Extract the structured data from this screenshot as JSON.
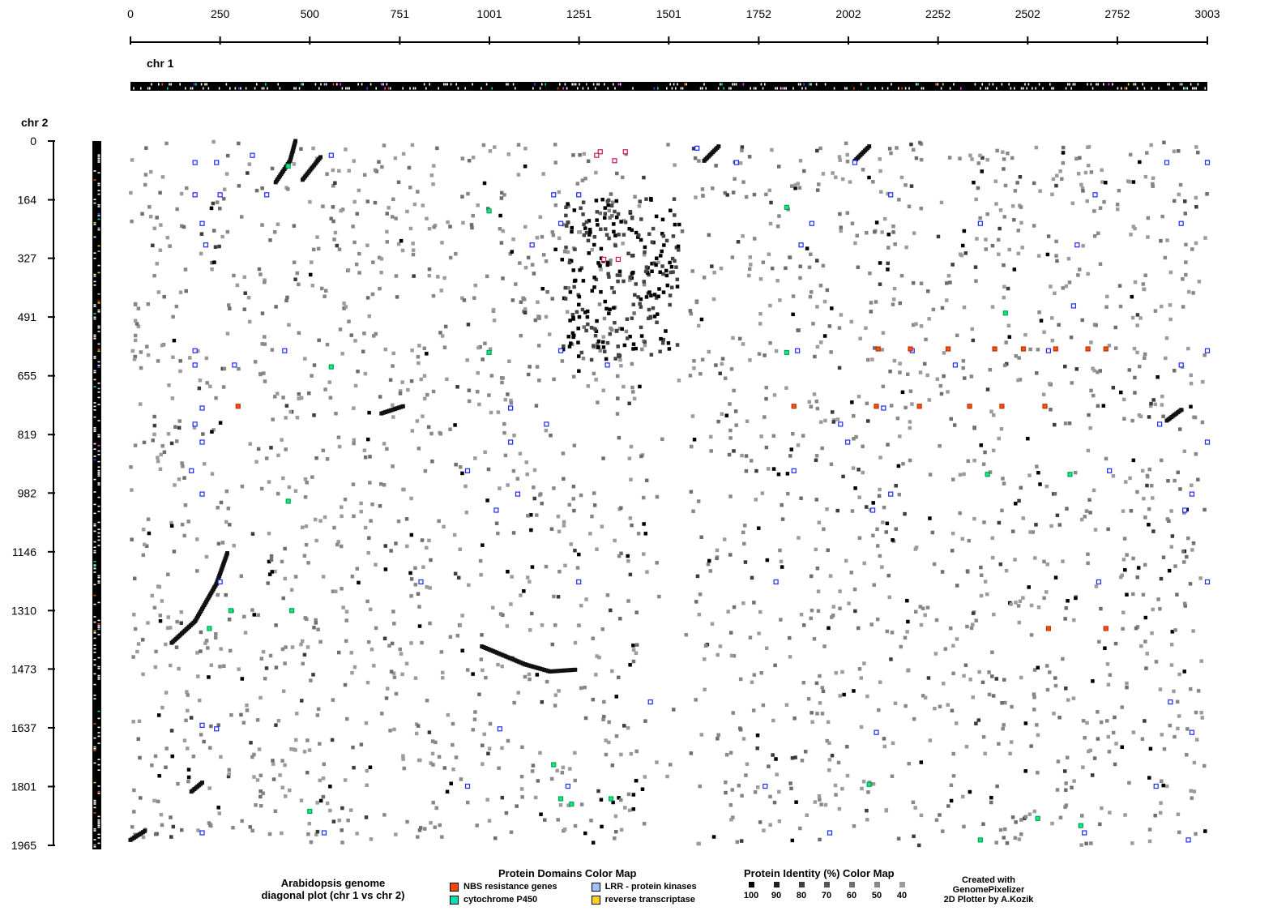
{
  "chart_data": {
    "type": "scatter",
    "title": "Arabidopsis genome diagonal plot (chr 1 vs chr 2)",
    "x_chromosome_label": "chr 1",
    "y_chromosome_label": "chr 2",
    "x_ticks": [
      0,
      250,
      500,
      751,
      1001,
      1251,
      1501,
      1752,
      2002,
      2252,
      2502,
      2752,
      3003
    ],
    "y_ticks": [
      0,
      164,
      327,
      491,
      655,
      819,
      982,
      1146,
      1310,
      1473,
      1637,
      1801,
      1965
    ],
    "xlim": [
      0,
      3003
    ],
    "ylim": [
      0,
      1965
    ],
    "y_inverted": true,
    "diagonal_segments": [
      {
        "identity": 100,
        "points": [
          [
            460,
            0
          ],
          [
            445,
            55
          ],
          [
            405,
            115
          ]
        ]
      },
      {
        "identity": 100,
        "points": [
          [
            530,
            45
          ],
          [
            480,
            108
          ]
        ]
      },
      {
        "identity": 100,
        "points": [
          [
            270,
            1150
          ],
          [
            240,
            1235
          ],
          [
            180,
            1340
          ],
          [
            115,
            1400
          ]
        ]
      },
      {
        "identity": 100,
        "points": [
          [
            980,
            1410
          ],
          [
            1100,
            1460
          ],
          [
            1170,
            1480
          ],
          [
            1240,
            1475
          ]
        ]
      },
      {
        "identity": 100,
        "points": [
          [
            700,
            760
          ],
          [
            760,
            740
          ]
        ]
      },
      {
        "identity": 100,
        "points": [
          [
            1640,
            15
          ],
          [
            1600,
            55
          ]
        ]
      },
      {
        "identity": 100,
        "points": [
          [
            2930,
            750
          ],
          [
            2890,
            780
          ]
        ]
      },
      {
        "identity": 100,
        "points": [
          [
            2060,
            15
          ],
          [
            2020,
            55
          ]
        ]
      },
      {
        "identity": 100,
        "points": [
          [
            40,
            1925
          ],
          [
            0,
            1950
          ]
        ]
      },
      {
        "identity": 100,
        "points": [
          [
            200,
            1790
          ],
          [
            170,
            1815
          ]
        ]
      }
    ],
    "domain_hits": {
      "lrr_protein_kinases": [
        [
          180,
          60
        ],
        [
          240,
          60
        ],
        [
          250,
          150
        ],
        [
          340,
          40
        ],
        [
          560,
          40
        ],
        [
          1580,
          20
        ],
        [
          1690,
          60
        ],
        [
          2020,
          60
        ],
        [
          2890,
          60
        ],
        [
          3003,
          60
        ],
        [
          180,
          150
        ],
        [
          380,
          150
        ],
        [
          1180,
          150
        ],
        [
          1250,
          150
        ],
        [
          2120,
          150
        ],
        [
          2690,
          150
        ],
        [
          2930,
          230
        ],
        [
          200,
          230
        ],
        [
          1200,
          230
        ],
        [
          1900,
          230
        ],
        [
          2370,
          230
        ],
        [
          210,
          290
        ],
        [
          1120,
          290
        ],
        [
          1870,
          290
        ],
        [
          2640,
          290
        ],
        [
          2630,
          460
        ],
        [
          180,
          585
        ],
        [
          430,
          585
        ],
        [
          1200,
          585
        ],
        [
          1860,
          585
        ],
        [
          2180,
          585
        ],
        [
          2560,
          585
        ],
        [
          3003,
          585
        ],
        [
          180,
          625
        ],
        [
          290,
          625
        ],
        [
          1330,
          625
        ],
        [
          2300,
          625
        ],
        [
          2930,
          625
        ],
        [
          200,
          745
        ],
        [
          1060,
          745
        ],
        [
          2100,
          745
        ],
        [
          180,
          790
        ],
        [
          1160,
          790
        ],
        [
          1980,
          790
        ],
        [
          2870,
          790
        ],
        [
          200,
          840
        ],
        [
          1060,
          840
        ],
        [
          2000,
          840
        ],
        [
          3003,
          840
        ],
        [
          170,
          920
        ],
        [
          940,
          920
        ],
        [
          1850,
          920
        ],
        [
          2730,
          920
        ],
        [
          200,
          985
        ],
        [
          1080,
          985
        ],
        [
          2120,
          985
        ],
        [
          2960,
          985
        ],
        [
          2940,
          1030
        ],
        [
          1020,
          1030
        ],
        [
          2070,
          1030
        ],
        [
          250,
          1230
        ],
        [
          810,
          1230
        ],
        [
          1250,
          1230
        ],
        [
          1800,
          1230
        ],
        [
          2700,
          1230
        ],
        [
          3003,
          1230
        ],
        [
          1450,
          1565
        ],
        [
          2900,
          1565
        ],
        [
          200,
          1630
        ],
        [
          240,
          1640
        ],
        [
          1030,
          1640
        ],
        [
          2080,
          1650
        ],
        [
          2960,
          1650
        ],
        [
          940,
          1800
        ],
        [
          1220,
          1800
        ],
        [
          1770,
          1800
        ],
        [
          2860,
          1800
        ],
        [
          200,
          1930
        ],
        [
          540,
          1930
        ],
        [
          1950,
          1930
        ],
        [
          2660,
          1930
        ],
        [
          2950,
          1950
        ]
      ],
      "nbs_resistance_genes": [
        [
          2085,
          580
        ],
        [
          2175,
          580
        ],
        [
          2280,
          580
        ],
        [
          2410,
          580
        ],
        [
          2490,
          580
        ],
        [
          2580,
          580
        ],
        [
          2670,
          580
        ],
        [
          2720,
          580
        ],
        [
          2080,
          740
        ],
        [
          2200,
          740
        ],
        [
          2340,
          740
        ],
        [
          2430,
          740
        ],
        [
          2550,
          740
        ],
        [
          2560,
          1360
        ],
        [
          2720,
          1360
        ],
        [
          1850,
          740
        ],
        [
          300,
          740
        ]
      ],
      "reverse_transcriptase": [
        [
          1310,
          30
        ],
        [
          1380,
          30
        ],
        [
          1300,
          40
        ],
        [
          1350,
          55
        ],
        [
          1320,
          330
        ],
        [
          1360,
          330
        ]
      ],
      "cytochrome_p450": [
        [
          440,
          70
        ],
        [
          1000,
          195
        ],
        [
          1830,
          185
        ],
        [
          1000,
          590
        ],
        [
          1830,
          590
        ],
        [
          2440,
          480
        ],
        [
          560,
          630
        ],
        [
          440,
          1005
        ],
        [
          280,
          1310
        ],
        [
          450,
          1310
        ],
        [
          220,
          1360
        ],
        [
          500,
          1870
        ],
        [
          1200,
          1835
        ],
        [
          1230,
          1850
        ],
        [
          1340,
          1835
        ],
        [
          2060,
          1795
        ],
        [
          2370,
          1950
        ],
        [
          2530,
          1890
        ],
        [
          2650,
          1910
        ],
        [
          1180,
          1740
        ],
        [
          2620,
          930
        ],
        [
          2390,
          930
        ]
      ]
    },
    "domain_legend": [
      "NBS resistance genes",
      "cytochrome P450",
      "LRR - protein kinases",
      "reverse transcriptase"
    ],
    "domain_colors": {
      "nbs_resistance_genes": "#ff4500",
      "cytochrome_p450": "#00e0b0",
      "lrr_protein_kinases": "#a0c0ff",
      "reverse_transcriptase": "#ffd020"
    },
    "identity_levels": [
      100,
      90,
      80,
      70,
      60,
      50,
      40
    ],
    "identity_colors": [
      "#000000",
      "#1e1e1e",
      "#3c3c3c",
      "#555555",
      "#6e6e6e",
      "#888888",
      "#9c9c9c"
    ],
    "grid": false
  },
  "captions": {
    "plot_title_line1": "Arabidopsis genome",
    "plot_title_line2": "diagonal plot (chr 1 vs chr 2)",
    "domain_map_title": "Protein Domains Color Map",
    "identity_map_title": "Protein Identity (%) Color Map",
    "credit_line1": "Created with",
    "credit_line2": "GenomePixelizer",
    "credit_line3": "2D Plotter by A.Kozik"
  },
  "domain_items": [
    {
      "label": "NBS resistance genes",
      "color": "#ff4500"
    },
    {
      "label": "cytochrome P450",
      "color": "#00e0b0"
    },
    {
      "label": "LRR - protein kinases",
      "color": "#a0c0ff"
    },
    {
      "label": "reverse transcriptase",
      "color": "#ffd020"
    }
  ],
  "identity_items": [
    {
      "label": "100",
      "color": "#000000"
    },
    {
      "label": "90",
      "color": "#1e1e1e"
    },
    {
      "label": "80",
      "color": "#3c3c3c"
    },
    {
      "label": "70",
      "color": "#555555"
    },
    {
      "label": "60",
      "color": "#6e6e6e"
    },
    {
      "label": "50",
      "color": "#888888"
    },
    {
      "label": "40",
      "color": "#9c9c9c"
    }
  ]
}
